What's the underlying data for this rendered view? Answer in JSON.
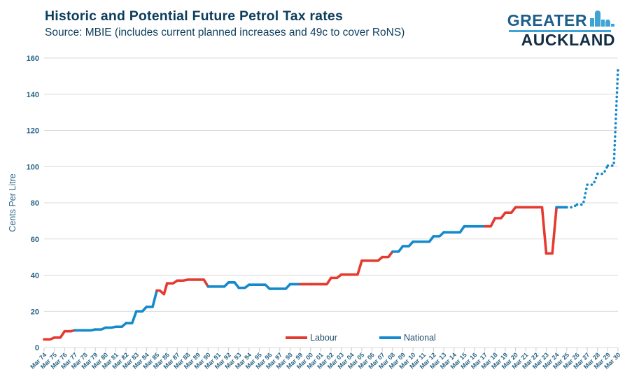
{
  "header": {
    "title": "Historic and Potential Future Petrol Tax rates",
    "subtitle": "Source: MBIE (includes current planned increases and 49c to cover RoNS)"
  },
  "logo": {
    "line1": "GREATER",
    "line2": "AUCKLAND"
  },
  "colors": {
    "labour": "#e53a30",
    "national": "#1489cc",
    "title_text": "#0d3d5c",
    "axis_text": "#2a6586",
    "grid": "#d9d9d9",
    "axis_line": "#c9c9c9",
    "logo_accent": "#3fa3d5"
  },
  "chart_data": {
    "type": "line",
    "title": "Historic and Potential Future Petrol Tax rates",
    "xlabel": "",
    "ylabel": "Cents Per Litre",
    "ylim": [
      0,
      160
    ],
    "y_ticks": [
      0,
      20,
      40,
      60,
      80,
      100,
      120,
      140,
      160
    ],
    "grid": true,
    "legend_position": "bottom-center",
    "x_tick_labels": [
      "Mar 74",
      "Mar 75",
      "Mar 76",
      "Mar 77",
      "Mar 78",
      "Mar 79",
      "Mar 80",
      "Mar 81",
      "Mar 82",
      "Mar 83",
      "Mar 84",
      "Mar 85",
      "Mar 86",
      "Mar 87",
      "Mar 88",
      "Mar 89",
      "Mar 90",
      "Mar 91",
      "Mar 92",
      "Mar 93",
      "Mar 94",
      "Mar 95",
      "Mar 96",
      "Mar 97",
      "Mar 98",
      "Mar 99",
      "Mar 00",
      "Mar 01",
      "Mar 02",
      "Mar 03",
      "Mar 04",
      "Mar 05",
      "Mar 06",
      "Mar 07",
      "Mar 08",
      "Mar 09",
      "Mar 10",
      "Mar 11",
      "Mar 12",
      "Mar 13",
      "Mar 14",
      "Mar 15",
      "Mar 16",
      "Mar 17",
      "Mar 18",
      "Mar 19",
      "Mar 20",
      "Mar 21",
      "Mar 22",
      "Mar 23",
      "Mar 24",
      "Mar 25",
      "Mar 26",
      "Mar 27",
      "Mar 28",
      "Mar 29",
      "Mar 30"
    ],
    "legend": [
      {
        "label": "Labour",
        "color_key": "labour"
      },
      {
        "label": "National",
        "color_key": "national"
      }
    ],
    "series_points": [
      {
        "x": 1974,
        "y": 4.5,
        "party": "labour"
      },
      {
        "x": 1975,
        "y": 5.5,
        "party": "labour"
      },
      {
        "x": 1976,
        "y": 9,
        "party": "labour"
      },
      {
        "x": 1977,
        "y": 9.5,
        "party": "national"
      },
      {
        "x": 1978,
        "y": 9.5,
        "party": "national"
      },
      {
        "x": 1979,
        "y": 10,
        "party": "national"
      },
      {
        "x": 1980,
        "y": 11,
        "party": "national"
      },
      {
        "x": 1981,
        "y": 11.5,
        "party": "national"
      },
      {
        "x": 1982,
        "y": 13.5,
        "party": "national"
      },
      {
        "x": 1983,
        "y": 20,
        "party": "national"
      },
      {
        "x": 1984,
        "y": 22.5,
        "party": "national"
      },
      {
        "x": 1985,
        "y": 31.5,
        "party": "labour"
      },
      {
        "x": 1985.7,
        "y": 29.5,
        "party": "labour"
      },
      {
        "x": 1986,
        "y": 35.5,
        "party": "labour"
      },
      {
        "x": 1987,
        "y": 37,
        "party": "labour"
      },
      {
        "x": 1988,
        "y": 37.5,
        "party": "labour"
      },
      {
        "x": 1989,
        "y": 37.5,
        "party": "labour"
      },
      {
        "x": 1990,
        "y": 33.7,
        "party": "national"
      },
      {
        "x": 1991,
        "y": 33.7,
        "party": "national"
      },
      {
        "x": 1992,
        "y": 36,
        "party": "national"
      },
      {
        "x": 1993,
        "y": 33,
        "party": "national"
      },
      {
        "x": 1994,
        "y": 34.7,
        "party": "national"
      },
      {
        "x": 1995,
        "y": 34.7,
        "party": "national"
      },
      {
        "x": 1996,
        "y": 32.5,
        "party": "national"
      },
      {
        "x": 1997,
        "y": 32.5,
        "party": "national"
      },
      {
        "x": 1998,
        "y": 35,
        "party": "national"
      },
      {
        "x": 1999,
        "y": 35,
        "party": "labour"
      },
      {
        "x": 2000,
        "y": 35,
        "party": "labour"
      },
      {
        "x": 2001,
        "y": 35,
        "party": "labour"
      },
      {
        "x": 2002,
        "y": 38.5,
        "party": "labour"
      },
      {
        "x": 2003,
        "y": 40.3,
        "party": "labour"
      },
      {
        "x": 2004,
        "y": 40.3,
        "party": "labour"
      },
      {
        "x": 2005,
        "y": 48,
        "party": "labour"
      },
      {
        "x": 2006,
        "y": 48,
        "party": "labour"
      },
      {
        "x": 2007,
        "y": 50,
        "party": "labour"
      },
      {
        "x": 2008,
        "y": 53,
        "party": "national"
      },
      {
        "x": 2009,
        "y": 56,
        "party": "national"
      },
      {
        "x": 2010,
        "y": 58.5,
        "party": "national"
      },
      {
        "x": 2011,
        "y": 58.5,
        "party": "national"
      },
      {
        "x": 2012,
        "y": 61.5,
        "party": "national"
      },
      {
        "x": 2013,
        "y": 63.7,
        "party": "national"
      },
      {
        "x": 2014,
        "y": 63.7,
        "party": "national"
      },
      {
        "x": 2015,
        "y": 67,
        "party": "national"
      },
      {
        "x": 2016,
        "y": 67,
        "party": "national"
      },
      {
        "x": 2017,
        "y": 67,
        "party": "labour"
      },
      {
        "x": 2018,
        "y": 71.5,
        "party": "labour"
      },
      {
        "x": 2019,
        "y": 74.5,
        "party": "labour"
      },
      {
        "x": 2020,
        "y": 77.5,
        "party": "labour"
      },
      {
        "x": 2021,
        "y": 77.5,
        "party": "labour"
      },
      {
        "x": 2022,
        "y": 77.5,
        "party": "labour"
      },
      {
        "x": 2023,
        "y": 52,
        "party": "labour"
      },
      {
        "x": 2024,
        "y": 77.5,
        "party": "national"
      },
      {
        "x": 2025,
        "y": 77.5,
        "party": "national"
      },
      {
        "x": 2026,
        "y": 79,
        "party": "national",
        "future": true
      },
      {
        "x": 2027,
        "y": 90,
        "party": "national",
        "future": true
      },
      {
        "x": 2028,
        "y": 96,
        "party": "national",
        "future": true
      },
      {
        "x": 2029,
        "y": 100.5,
        "party": "national",
        "future": true
      },
      {
        "x": 2030,
        "y": 154,
        "party": "national",
        "future": true
      }
    ]
  }
}
